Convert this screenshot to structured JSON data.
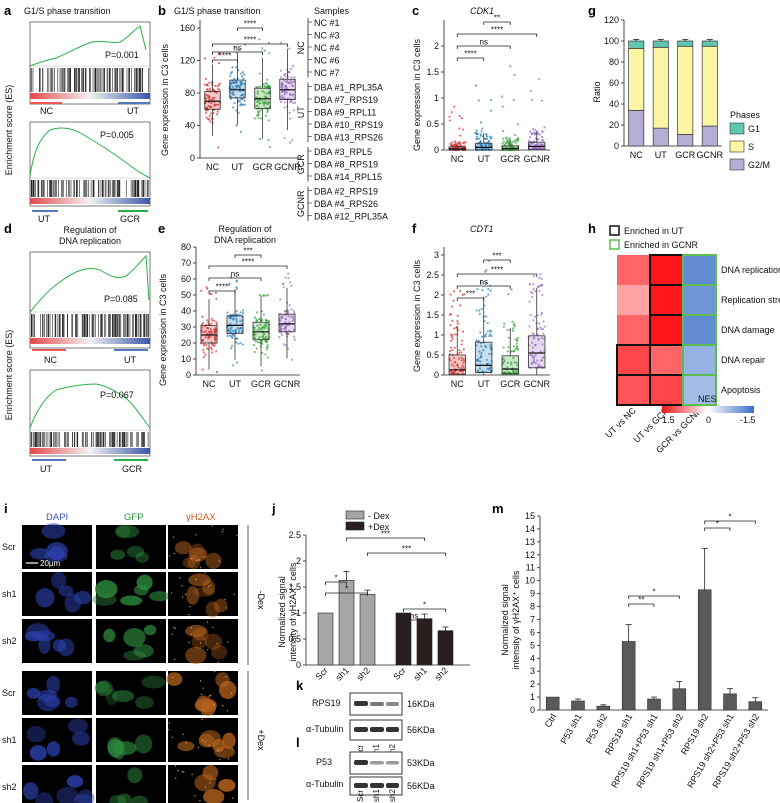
{
  "panels": {
    "a": {
      "letter": "a",
      "title": "G1/S phase transition",
      "ylabel": "Enrichment score (ES)",
      "top": {
        "p": "P=0.001",
        "left": "NC",
        "right": "UT"
      },
      "bottom": {
        "p": "P=0.005",
        "left": "UT",
        "right": "GCR"
      }
    },
    "b": {
      "letter": "b",
      "title": "G1/S phase transition",
      "ylabel": "Gene expression in C3 cells",
      "sig": [
        "****",
        "ns",
        "****",
        "****"
      ],
      "samples_title": "Samples",
      "groups": [
        {
          "label": "NC",
          "items": [
            "NC #1",
            "NC #3",
            "NC #4",
            "NC #6",
            "NC #7"
          ]
        },
        {
          "label": "UT",
          "items": [
            "DBA #1_RPL35A",
            "DBA #7_RPS19",
            "DBA #9_RPL11",
            "DBA #10_RPS19",
            "DBA #13_RPS26"
          ]
        },
        {
          "label": "GCR",
          "items": [
            "DBA #3_RPL5",
            "DBA #8_RPS19",
            "DBA #14_RPL15"
          ]
        },
        {
          "label": "GCNR",
          "items": [
            "DBA #2_RPS19",
            "DBA #4_RPS26",
            "DBA #12_RPL35A"
          ]
        }
      ]
    },
    "c": {
      "letter": "c",
      "title": "CDK1",
      "ylabel": "Gene expression in C3 cells",
      "sig": [
        "****",
        "ns",
        "****",
        "**"
      ]
    },
    "d": {
      "letter": "d",
      "title_line1": "Regulation of",
      "title_line2": "DNA replication",
      "ylabel": "Enrichment score (ES)",
      "top": {
        "p": "P=0.085",
        "left": "NC",
        "right": "UT"
      },
      "bottom": {
        "p": "P=0.067",
        "left": "UT",
        "right": "GCR"
      }
    },
    "e": {
      "letter": "e",
      "title_line1": "Regulation of",
      "title_line2": "DNA replication",
      "ylabel": "Gene expression in C3 cells",
      "sig": [
        "****",
        "ns",
        "****",
        "***"
      ]
    },
    "f": {
      "letter": "f",
      "title": "CDT1",
      "ylabel": "Gene expression in C3 cells",
      "sig": [
        "***",
        "ns",
        "****",
        "***"
      ]
    },
    "g": {
      "letter": "g",
      "legend_title": "Phases"
    },
    "h": {
      "letter": "h",
      "legend_ut": "Enriched in UT",
      "legend_gcnr": "Enriched in GCNR",
      "nes_label": "NES",
      "scale": [
        "1.5",
        "0",
        "-1.5"
      ]
    },
    "i": {
      "letter": "i",
      "cols": [
        "DAPI",
        "GFP",
        "γH2AX"
      ],
      "rows": [
        "Scr",
        "sh1",
        "sh2",
        "Scr",
        "sh1",
        "sh2"
      ],
      "scale_bar": "20μm",
      "cond_minus": "-Dex",
      "cond_plus": "+Dex"
    },
    "j": {
      "letter": "j",
      "ylabel_line1": "Normalized signal",
      "ylabel_line2": "intensity of γH2AX⁺ cells",
      "sig": [
        "*",
        "*",
        "***",
        "***",
        "ns",
        "*"
      ]
    },
    "k": {
      "letter": "k",
      "protein": "RPS19",
      "size": "16KDa",
      "ctrl": "α-Tubulin",
      "ctrl_size": "56KDa",
      "lanes": [
        "Scr",
        "sh1",
        "sh2"
      ]
    },
    "l": {
      "letter": "l",
      "protein": "P53",
      "size": "53KDa",
      "ctrl": "α-Tubulin",
      "ctrl_size": "56KDa",
      "lanes": [
        "Scr",
        "sh1",
        "sh2"
      ]
    },
    "m": {
      "letter": "m",
      "ylabel_line1": "Normalized signal",
      "ylabel_line2": "intensity of γH2AX⁺ cells",
      "sig": [
        "**",
        "*",
        "*",
        "*"
      ]
    }
  },
  "colors": {
    "NC": "#d62728",
    "UT": "#1f77b4",
    "GCR": "#2ca02c",
    "GCNR": "#9467bd",
    "G1": "#5fc7b0",
    "S": "#fbf5a4",
    "G2M": "#b5aed4",
    "minusDex": "#a5a5a5",
    "plusDex": "#2a1f1f",
    "mbar": "#5a5a5a"
  },
  "chart_data": [
    {
      "id": "b",
      "type": "box",
      "categories": [
        "NC",
        "UT",
        "GCR",
        "GCNR"
      ],
      "median": [
        70,
        84,
        73,
        84
      ],
      "q1": [
        60,
        74,
        61,
        72
      ],
      "q3": [
        82,
        96,
        86,
        97
      ],
      "ylim": [
        0,
        170
      ],
      "yticks": [
        0,
        40,
        80,
        120,
        160
      ]
    },
    {
      "id": "c",
      "type": "box",
      "categories": [
        "NC",
        "UT",
        "GCR",
        "GCNR"
      ],
      "median": [
        0.02,
        0.05,
        0.03,
        0.07
      ],
      "q1": [
        0,
        0,
        0,
        0.01
      ],
      "q3": [
        0.06,
        0.13,
        0.08,
        0.15
      ],
      "ylim": [
        0,
        2.5
      ],
      "yticks": [
        0,
        0.5,
        1,
        1.5,
        2
      ]
    },
    {
      "id": "e",
      "type": "box",
      "categories": [
        "NC",
        "UT",
        "GCR",
        "GCNR"
      ],
      "median": [
        25,
        31,
        27,
        32
      ],
      "q1": [
        20,
        26,
        22,
        27
      ],
      "q3": [
        31,
        37,
        33,
        38
      ],
      "ylim": [
        0,
        80
      ],
      "yticks": [
        0,
        10,
        20,
        30,
        40,
        50,
        60,
        70,
        80
      ]
    },
    {
      "id": "f",
      "type": "box",
      "categories": [
        "NC",
        "UT",
        "GCR",
        "GCNR"
      ],
      "median": [
        0.13,
        0.24,
        0.15,
        0.55
      ],
      "q1": [
        0.02,
        0.06,
        0.03,
        0.18
      ],
      "q3": [
        0.5,
        0.82,
        0.48,
        0.98
      ],
      "ylim": [
        0,
        3.2
      ],
      "yticks": [
        0,
        0.5,
        1,
        1.5,
        2,
        2.5,
        3
      ]
    },
    {
      "id": "g",
      "type": "bar",
      "stacked": true,
      "categories": [
        "NC",
        "UT",
        "GCR",
        "GCNR"
      ],
      "ylabel": "Ratio",
      "ylim": [
        0,
        120
      ],
      "yticks": [
        0,
        20,
        40,
        60,
        80,
        100,
        120
      ],
      "series": [
        {
          "name": "G2/M",
          "values": [
            34,
            17,
            11,
            19
          ]
        },
        {
          "name": "S",
          "values": [
            59,
            77,
            84,
            76
          ]
        },
        {
          "name": "G1",
          "values": [
            7,
            6,
            5,
            5
          ]
        }
      ]
    },
    {
      "id": "h",
      "type": "heatmap",
      "rows": [
        "DNA replication",
        "Replication stress",
        "DNA damage",
        "DNA repair",
        "Apoptosis"
      ],
      "cols": [
        "UT vs NC",
        "UT vs GCR",
        "GCR vs GCNR"
      ],
      "values": [
        [
          1.0,
          1.5,
          -1.2
        ],
        [
          0.6,
          1.5,
          -1.1
        ],
        [
          1.0,
          1.5,
          -1.2
        ],
        [
          1.2,
          1.0,
          -0.8
        ],
        [
          1.1,
          1.2,
          -0.7
        ]
      ]
    },
    {
      "id": "j",
      "type": "bar",
      "categories": [
        "Scr",
        "sh1",
        "sh2"
      ],
      "ylim": [
        0,
        2.5
      ],
      "yticks": [
        0,
        0.5,
        1,
        1.5,
        2,
        2.5
      ],
      "series": [
        {
          "name": "- Dex",
          "values": [
            1.0,
            1.63,
            1.36
          ],
          "err": [
            0,
            0.17,
            0.08
          ]
        },
        {
          "name": "+Dex",
          "values": [
            1.0,
            0.89,
            0.66
          ],
          "err": [
            0,
            0.09,
            0.07
          ]
        }
      ]
    },
    {
      "id": "m",
      "type": "bar",
      "categories": [
        "Ctrl",
        "P53 sh1",
        "P53 sh2",
        "RPS19 sh1",
        "RPS19 sh1+P53 sh1",
        "RPS19 sh1+P53 sh2",
        "RPS19 sh2",
        "RPS19 sh2+P53 sh1",
        "RPS19 sh2+P53 sh2"
      ],
      "values": [
        1.0,
        0.7,
        0.3,
        5.3,
        0.85,
        1.65,
        9.3,
        1.25,
        0.65
      ],
      "err": [
        0,
        0.15,
        0.1,
        1.3,
        0.15,
        0.55,
        3.2,
        0.4,
        0.3
      ],
      "ylim": [
        0,
        15
      ],
      "yticks": [
        0,
        1,
        2,
        3,
        4,
        5,
        6,
        7,
        8,
        9,
        10,
        11,
        12,
        13,
        14,
        15
      ]
    }
  ]
}
